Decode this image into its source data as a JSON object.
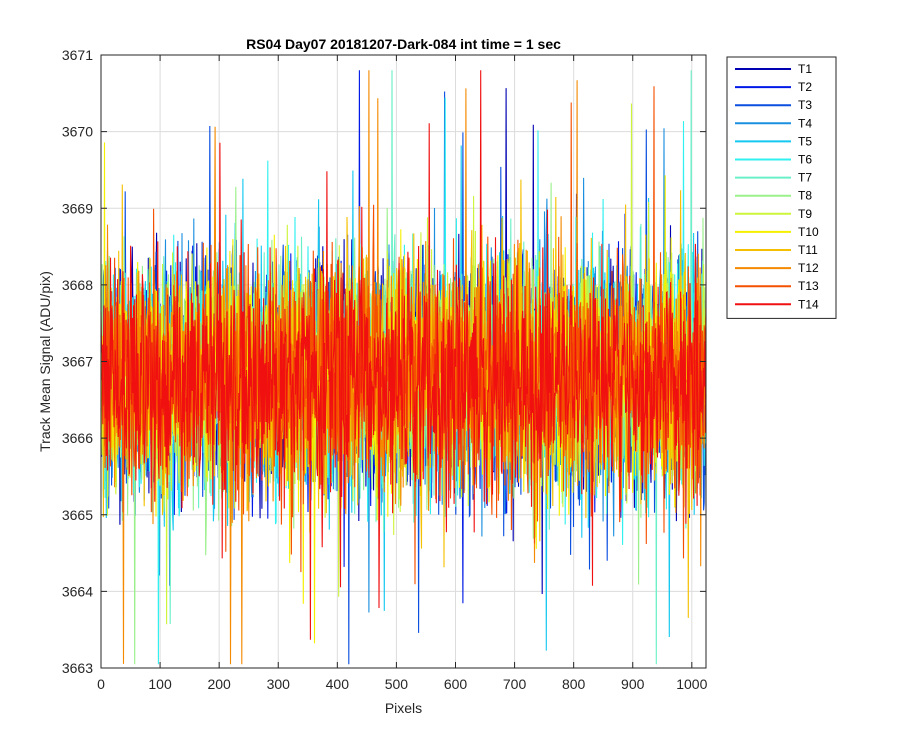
{
  "chart_data": {
    "type": "line",
    "title": "RS04 Day07 20181207-Dark-084 int time = 1 sec",
    "xlabel": "Pixels",
    "ylabel": "Track Mean Signal (ADU/pix)",
    "xlim": [
      0,
      1024
    ],
    "ylim": [
      3663,
      3671
    ],
    "xticks": [
      0,
      100,
      200,
      300,
      400,
      500,
      600,
      700,
      800,
      900,
      1000
    ],
    "yticks": [
      3663,
      3664,
      3665,
      3666,
      3667,
      3668,
      3669,
      3670,
      3671
    ],
    "grid": true,
    "legend_location": "outside-top-right",
    "n_points": 1024,
    "noise_description": "Each trace is dense pixel-to-pixel noise centred near 3666.8 ADU/pix, mostly within 3665-3668.5, with spikes between about 3663.1 and 3670.8; values are drawn procedurally to approximate this distribution.",
    "series": [
      {
        "name": "T1",
        "color": "#0000b3",
        "mean": 3666.8,
        "spread": 0.75,
        "seed": 11
      },
      {
        "name": "T2",
        "color": "#0019e6",
        "mean": 3666.8,
        "spread": 0.75,
        "seed": 23
      },
      {
        "name": "T3",
        "color": "#0a4fe0",
        "mean": 3666.8,
        "spread": 0.75,
        "seed": 37
      },
      {
        "name": "T4",
        "color": "#1a8fe0",
        "mean": 3666.8,
        "spread": 0.75,
        "seed": 41
      },
      {
        "name": "T5",
        "color": "#14c8f0",
        "mean": 3666.8,
        "spread": 0.75,
        "seed": 53
      },
      {
        "name": "T6",
        "color": "#30f0f0",
        "mean": 3666.8,
        "spread": 0.75,
        "seed": 67
      },
      {
        "name": "T7",
        "color": "#6af0c8",
        "mean": 3666.8,
        "spread": 0.75,
        "seed": 71
      },
      {
        "name": "T8",
        "color": "#9af08a",
        "mean": 3666.8,
        "spread": 0.75,
        "seed": 83
      },
      {
        "name": "T9",
        "color": "#cdf53a",
        "mean": 3666.8,
        "spread": 0.75,
        "seed": 97
      },
      {
        "name": "T10",
        "color": "#f5f000",
        "mean": 3666.8,
        "spread": 0.75,
        "seed": 101
      },
      {
        "name": "T11",
        "color": "#f5c000",
        "mean": 3666.8,
        "spread": 0.75,
        "seed": 113
      },
      {
        "name": "T12",
        "color": "#f58a00",
        "mean": 3666.8,
        "spread": 0.75,
        "seed": 127
      },
      {
        "name": "T13",
        "color": "#f55000",
        "mean": 3666.8,
        "spread": 0.75,
        "seed": 131
      },
      {
        "name": "T14",
        "color": "#f01010",
        "mean": 3666.8,
        "spread": 0.75,
        "seed": 139
      }
    ]
  }
}
